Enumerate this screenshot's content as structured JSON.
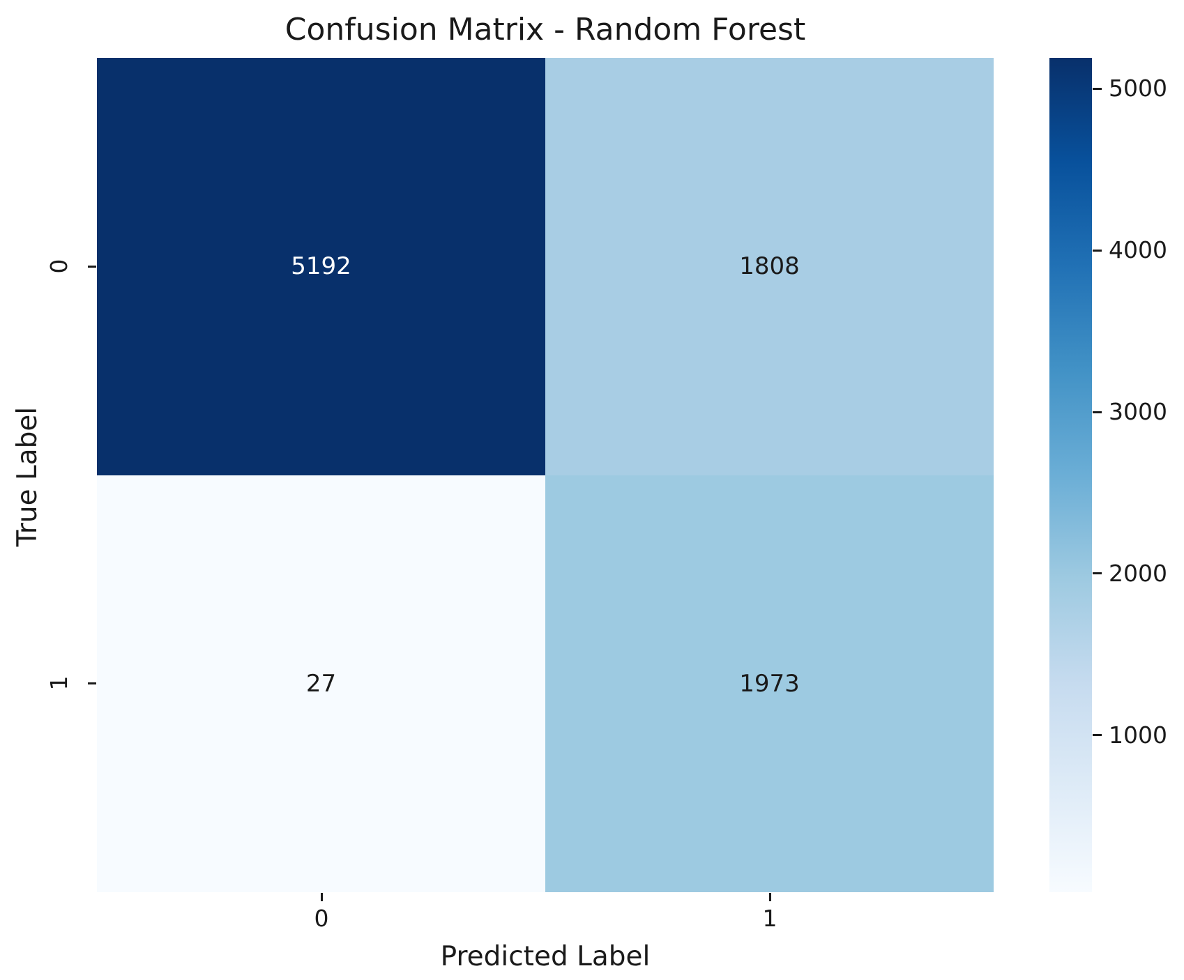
{
  "chart_data": {
    "type": "heatmap",
    "title": "Confusion Matrix - Random Forest",
    "xlabel": "Predicted Label",
    "ylabel": "True Label",
    "x_categories": [
      "0",
      "1"
    ],
    "y_categories": [
      "0",
      "1"
    ],
    "matrix": [
      [
        5192,
        1808
      ],
      [
        27,
        1973
      ]
    ],
    "cell_colors": [
      [
        "#08306b",
        "#a8cde4"
      ],
      [
        "#f7fbff",
        "#9dcae1"
      ]
    ],
    "cell_text_colors": [
      [
        "#ffffff",
        "#1a1a1a"
      ],
      [
        "#1a1a1a",
        "#1a1a1a"
      ]
    ],
    "colormap": "Blues",
    "vmin": 27,
    "vmax": 5192,
    "legend_position": "right-colorbar",
    "grid": false,
    "colorbar_ticks": [
      5000,
      4000,
      3000,
      2000,
      1000
    ],
    "colorbar_gradient": [
      "#f7fbff",
      "#deebf7",
      "#c6dbef",
      "#9ecae1",
      "#6baed6",
      "#4292c6",
      "#2171b5",
      "#08519c",
      "#08306b"
    ]
  }
}
